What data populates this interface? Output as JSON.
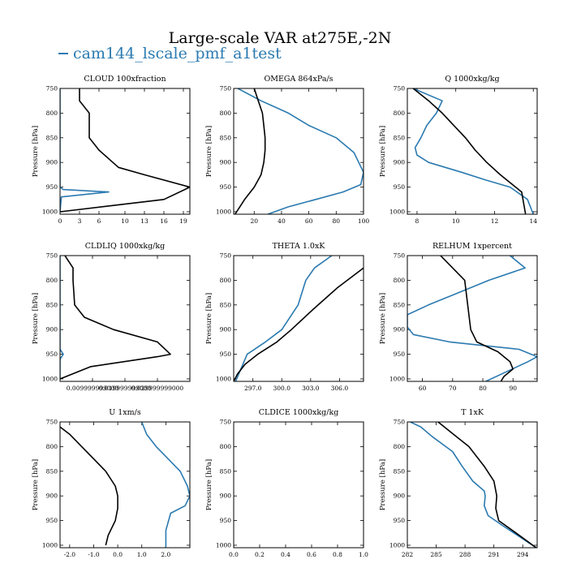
{
  "figure": {
    "title": "Large-scale VAR at275E,-2N",
    "legend_label": "cam144_lscale_pmf_a1test",
    "colors": {
      "case": "#2b7ab0",
      "reference": "#000000"
    }
  },
  "chart_data": [
    {
      "type": "line",
      "title": "CLOUD  100xfraction",
      "ylabel": "Pressure [hPa]",
      "xlim": [
        0,
        20
      ],
      "ylim": [
        1005,
        750
      ],
      "xticks": [
        0,
        3,
        6,
        10,
        13,
        16,
        19
      ],
      "xtick_labels": [
        "0",
        "3",
        "6",
        "10",
        "13",
        "16",
        "19"
      ],
      "yticks": [
        750,
        800,
        850,
        900,
        950,
        1000
      ],
      "series": [
        {
          "color": "#2b7ab0",
          "x": [
            0,
            0,
            0,
            0,
            0,
            0,
            0,
            0,
            0.5,
            7.5,
            0.2,
            0
          ],
          "y": [
            750,
            800,
            850,
            870,
            900,
            925,
            940,
            950,
            955,
            960,
            970,
            1000
          ]
        },
        {
          "color": "#000000",
          "x": [
            3,
            3,
            4.5,
            4.5,
            6,
            9,
            13,
            20,
            16,
            0
          ],
          "y": [
            750,
            775,
            800,
            850,
            875,
            910,
            925,
            950,
            975,
            1000
          ]
        }
      ]
    },
    {
      "type": "line",
      "title": "OMEGA  864xPa/s",
      "ylabel": "Pressure [hPa]",
      "xlim": [
        5,
        100
      ],
      "ylim": [
        1005,
        750
      ],
      "xticks": [
        20,
        40,
        60,
        80,
        100
      ],
      "xtick_labels": [
        "20",
        "40",
        "60",
        "80",
        "100"
      ],
      "yticks": [
        750,
        800,
        850,
        900,
        950,
        1000
      ],
      "series": [
        {
          "color": "#2b7ab0",
          "x": [
            8,
            25,
            45,
            60,
            80,
            93,
            100,
            98,
            85,
            65,
            45,
            30
          ],
          "y": [
            750,
            775,
            800,
            825,
            850,
            880,
            920,
            945,
            960,
            975,
            990,
            1005
          ]
        },
        {
          "color": "#000000",
          "x": [
            20,
            23,
            26,
            27,
            28,
            28,
            27,
            25,
            20,
            13,
            6
          ],
          "y": [
            750,
            775,
            800,
            825,
            850,
            875,
            900,
            925,
            950,
            975,
            1005
          ]
        }
      ]
    },
    {
      "type": "line",
      "title": "Q  1000xkg/kg",
      "ylabel": "Pressure [hPa]",
      "xlim": [
        7.5,
        14.2
      ],
      "ylim": [
        1005,
        750
      ],
      "xticks": [
        8,
        10,
        12,
        14
      ],
      "xtick_labels": [
        "8",
        "10",
        "12",
        "14"
      ],
      "yticks": [
        750,
        800,
        850,
        900,
        950,
        1000
      ],
      "series": [
        {
          "color": "#2b7ab0",
          "x": [
            7.8,
            9.3,
            9.0,
            8.5,
            8.2,
            7.9,
            8.0,
            8.6,
            10.3,
            11.5,
            12.8,
            13.7,
            14.0
          ],
          "y": [
            750,
            775,
            800,
            825,
            850,
            870,
            885,
            900,
            920,
            935,
            950,
            975,
            1005
          ]
        },
        {
          "color": "#000000",
          "x": [
            7.8,
            8.6,
            9.3,
            10.5,
            11.0,
            11.6,
            12.3,
            13.4,
            13.6
          ],
          "y": [
            750,
            775,
            800,
            850,
            875,
            900,
            925,
            960,
            1005
          ]
        }
      ]
    },
    {
      "type": "line",
      "title": "CLDLIQ  1000xkg/kg",
      "ylabel": "Pressure [hPa]",
      "xlim": [
        0,
        0.04
      ],
      "ylim": [
        1005,
        750
      ],
      "xticks": [
        0.01,
        0.02,
        0.03
      ],
      "xtick_labels": [
        "0.009999999000",
        "0.019999999000",
        "0.029999999000"
      ],
      "yticks": [
        750,
        800,
        850,
        900,
        950,
        1000
      ],
      "series": [
        {
          "color": "#2b7ab0",
          "x": [
            0,
            0,
            0,
            0,
            0.001,
            0.0,
            0.0
          ],
          "y": [
            750,
            850,
            900,
            940,
            950,
            960,
            1000
          ]
        },
        {
          "color": "#000000",
          "x": [
            0.0015,
            0.004,
            0.004,
            0.0045,
            0.0075,
            0.0165,
            0.03,
            0.034,
            0.03,
            0.0095,
            0
          ],
          "y": [
            750,
            775,
            800,
            850,
            875,
            900,
            925,
            950,
            955,
            975,
            1000
          ]
        }
      ]
    },
    {
      "type": "line",
      "title": "THETA  1.0xK",
      "ylabel": "Pressure [hPa]",
      "xlim": [
        295,
        308.5
      ],
      "ylim": [
        1005,
        750
      ],
      "xticks": [
        297,
        300,
        303,
        306
      ],
      "xtick_labels": [
        "297.0",
        "300.0",
        "303.0",
        "306.0"
      ],
      "yticks": [
        750,
        800,
        850,
        900,
        950,
        1000
      ],
      "series": [
        {
          "color": "#2b7ab0",
          "x": [
            305.2,
            303.4,
            302.5,
            301.7,
            300.0,
            298.3,
            296.4,
            295.2
          ],
          "y": [
            750,
            775,
            800,
            850,
            900,
            925,
            950,
            1005
          ]
        },
        {
          "color": "#000000",
          "x": [
            308.5,
            305.8,
            303.2,
            301.0,
            299.5,
            297.5,
            296.2,
            295.4,
            295.0
          ],
          "y": [
            775,
            815,
            860,
            900,
            925,
            950,
            970,
            990,
            1005
          ]
        }
      ]
    },
    {
      "type": "line",
      "title": "RELHUM  1xpercent",
      "ylabel": "Pressure [hPa]",
      "xlim": [
        55,
        98
      ],
      "ylim": [
        1005,
        750
      ],
      "xticks": [
        60,
        70,
        80,
        90
      ],
      "xtick_labels": [
        "60",
        "70",
        "80",
        "90"
      ],
      "yticks": [
        750,
        800,
        850,
        900,
        950,
        1000
      ],
      "series": [
        {
          "color": "#2b7ab0",
          "x": [
            89,
            94,
            82,
            72,
            62,
            55,
            55,
            57,
            69,
            92,
            98,
            95,
            88,
            81
          ],
          "y": [
            750,
            775,
            800,
            825,
            850,
            870,
            895,
            910,
            925,
            940,
            955,
            965,
            985,
            1005
          ]
        },
        {
          "color": "#000000",
          "x": [
            66,
            70,
            74,
            75,
            76,
            78,
            85,
            89,
            90,
            87,
            86
          ],
          "y": [
            750,
            775,
            800,
            850,
            900,
            925,
            945,
            965,
            980,
            995,
            1005
          ]
        }
      ]
    },
    {
      "type": "line",
      "title": "U  1xm/s",
      "ylabel": "Pressure [hPa]",
      "xlim": [
        -2.4,
        3.0
      ],
      "ylim": [
        1005,
        750
      ],
      "xticks": [
        -2,
        -1,
        0,
        1,
        2
      ],
      "xtick_labels": [
        "-2.0",
        "-1.0",
        "0.0",
        "1.0",
        "2.0"
      ],
      "yticks": [
        750,
        800,
        850,
        900,
        950,
        1000
      ],
      "series": [
        {
          "color": "#2b7ab0",
          "x": [
            1.0,
            1.2,
            1.6,
            2.1,
            2.6,
            2.9,
            3.0,
            2.8,
            2.2,
            2.0,
            2.0
          ],
          "y": [
            750,
            775,
            800,
            825,
            850,
            880,
            900,
            920,
            935,
            970,
            1005
          ]
        },
        {
          "color": "#000000",
          "x": [
            -2.4,
            -2.0,
            -1.5,
            -1.0,
            -0.5,
            -0.1,
            0.0,
            0.0,
            -0.1,
            -0.4,
            -0.5
          ],
          "y": [
            760,
            775,
            800,
            825,
            850,
            880,
            900,
            925,
            950,
            980,
            1000
          ]
        }
      ]
    },
    {
      "type": "line",
      "title": "CLDICE  1000xkg/kg",
      "ylabel": "Pressure [hPa]",
      "xlim": [
        0,
        1
      ],
      "ylim": [
        1005,
        750
      ],
      "xticks": [
        0,
        0.2,
        0.4,
        0.6,
        0.8,
        1.0
      ],
      "xtick_labels": [
        "0.0",
        "0.2",
        "0.4",
        "0.6",
        "0.8",
        "1.0"
      ],
      "yticks": [
        750,
        800,
        850,
        900,
        950,
        1000
      ],
      "series": []
    },
    {
      "type": "line",
      "title": "T  1xK",
      "ylabel": "Pressure [hPa]",
      "xlim": [
        282,
        295.5
      ],
      "ylim": [
        1005,
        750
      ],
      "xticks": [
        282,
        285,
        288,
        291,
        294
      ],
      "xtick_labels": [
        "282",
        "285",
        "288",
        "291",
        "294"
      ],
      "yticks": [
        750,
        800,
        850,
        900,
        950,
        1000
      ],
      "series": [
        {
          "color": "#2b7ab0",
          "x": [
            282.3,
            283.4,
            284.6,
            286.7,
            287.7,
            288.8,
            290.0,
            290.1,
            290.0,
            290.4,
            291.9,
            295.4
          ],
          "y": [
            750,
            760,
            780,
            810,
            840,
            870,
            890,
            900,
            920,
            940,
            960,
            1005
          ]
        },
        {
          "color": "#000000",
          "x": [
            285.2,
            286.8,
            288.4,
            290.0,
            291.0,
            291.3,
            291.2,
            291.5,
            293.3,
            295.4
          ],
          "y": [
            750,
            775,
            800,
            840,
            870,
            900,
            925,
            950,
            975,
            1005
          ]
        }
      ]
    }
  ]
}
